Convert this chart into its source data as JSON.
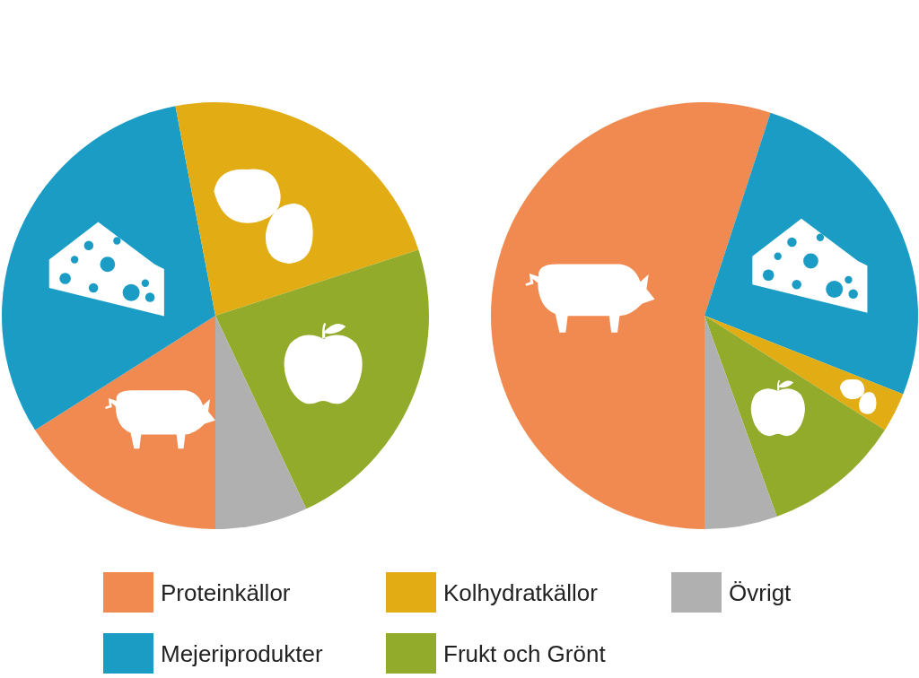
{
  "chart_data": {
    "type": "pie",
    "categories": [
      "Proteinkällor",
      "Mejeriprodukter",
      "Kolhydratkällor",
      "Frukt och Grönt",
      "Övrigt"
    ],
    "colors": [
      "#f08a50",
      "#1a9cc4",
      "#e2ac14",
      "#93ab2b",
      "#b0b0b0"
    ],
    "legend": "bottom",
    "series": [
      {
        "values": [
          16,
          31,
          23,
          23,
          7
        ]
      },
      {
        "values": [
          55,
          26,
          3,
          10.5,
          5.5
        ]
      }
    ]
  }
}
